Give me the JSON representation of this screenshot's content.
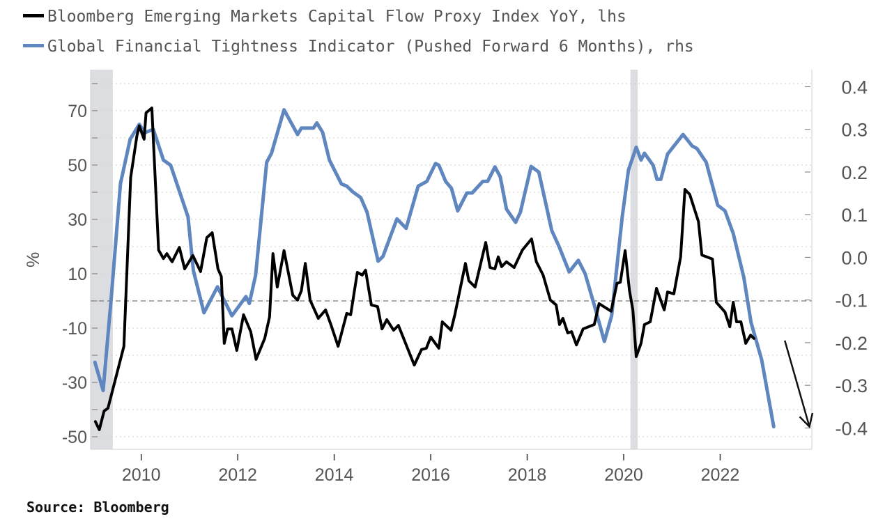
{
  "chart_data": {
    "type": "line",
    "title": "",
    "legend_position": "top-left",
    "source": "Source: Bloomberg",
    "ylabel_left": "%",
    "ylabel_right": "",
    "xlim": [
      2008.95,
      2023.9
    ],
    "ylim_left": [
      -54.6,
      85.1
    ],
    "ylim_right": [
      -0.45,
      0.44
    ],
    "x_ticks": [
      "2010",
      "2012",
      "2014",
      "2016",
      "2018",
      "2020",
      "2022"
    ],
    "x_tick_values": [
      2010,
      2012,
      2014,
      2016,
      2018,
      2020,
      2022
    ],
    "y_left_ticks": [
      "70",
      "50",
      "30",
      "10",
      "-10",
      "-30",
      "-50"
    ],
    "y_left_tick_values": [
      70,
      50,
      30,
      10,
      -10,
      -30,
      -50
    ],
    "y_right_ticks": [
      "0.4",
      "0.3",
      "0.2",
      "0.1",
      "0.0",
      "-0.1",
      "-0.2",
      "-0.3",
      "-0.4"
    ],
    "y_right_tick_values": [
      0.4,
      0.3,
      0.2,
      0.1,
      0.0,
      -0.1,
      -0.2,
      -0.3,
      -0.4
    ],
    "grid": true,
    "reference_line_left": 0,
    "shaded_periods": [
      [
        2008.95,
        2009.41
      ],
      [
        2020.14,
        2020.29
      ]
    ],
    "annotation_arrow": {
      "from": [
        2023.34,
        -0.195
      ],
      "to": [
        2023.85,
        -0.397
      ]
    },
    "series": [
      {
        "name": "Bloomberg Emerging Markets Capital Flow Proxy Index YoY, lhs",
        "axis": "left",
        "color": "#000000",
        "x": [
          2009.05,
          2009.13,
          2009.23,
          2009.31,
          2009.64,
          2009.78,
          2009.91,
          2009.96,
          2010.06,
          2010.1,
          2010.22,
          2010.36,
          2010.46,
          2010.53,
          2010.64,
          2010.79,
          2010.9,
          2011.07,
          2011.23,
          2011.36,
          2011.47,
          2011.59,
          2011.66,
          2011.72,
          2011.79,
          2011.88,
          2011.98,
          2012.12,
          2012.27,
          2012.38,
          2012.56,
          2012.66,
          2012.73,
          2012.82,
          2012.96,
          2013.14,
          2013.24,
          2013.32,
          2013.4,
          2013.5,
          2013.67,
          2013.82,
          2013.93,
          2014.08,
          2014.26,
          2014.34,
          2014.48,
          2014.58,
          2014.65,
          2014.77,
          2014.9,
          2014.99,
          2015.09,
          2015.23,
          2015.33,
          2015.66,
          2015.81,
          2015.91,
          2016.0,
          2016.17,
          2016.24,
          2016.42,
          2016.5,
          2016.72,
          2016.79,
          2016.92,
          2017.14,
          2017.23,
          2017.33,
          2017.4,
          2017.47,
          2017.57,
          2017.73,
          2017.9,
          2018.09,
          2018.19,
          2018.33,
          2018.48,
          2018.6,
          2018.67,
          2018.74,
          2018.84,
          2018.92,
          2019.02,
          2019.16,
          2019.39,
          2019.49,
          2019.74,
          2019.86,
          2019.93,
          2020.03,
          2020.12,
          2020.19,
          2020.26,
          2020.36,
          2020.43,
          2020.55,
          2020.68,
          2020.84,
          2020.91,
          2021.04,
          2021.18,
          2021.27,
          2021.37,
          2021.55,
          2021.62,
          2021.84,
          2021.92,
          2022.1,
          2022.2,
          2022.27,
          2022.34,
          2022.43,
          2022.53,
          2022.63,
          2022.7
        ],
        "values": [
          -44.4,
          -47.4,
          -40.5,
          -39.5,
          -16.7,
          45.4,
          60.8,
          64.4,
          59.5,
          69.2,
          71.0,
          18.7,
          15.6,
          17.4,
          14.4,
          19.7,
          11.8,
          16.7,
          10.8,
          23.3,
          25.1,
          11.8,
          9.0,
          -15.6,
          -10.3,
          -10.3,
          -18.2,
          -5.1,
          -11.3,
          -21.5,
          -13.8,
          -5.9,
          17.4,
          5.1,
          18.5,
          2.1,
          0.3,
          3.8,
          13.8,
          0.3,
          -6.4,
          -3.3,
          -8.7,
          -16.7,
          -4.6,
          -5.1,
          10.5,
          9.5,
          11.3,
          -1.5,
          -2.1,
          -10.3,
          -6.9,
          -10.8,
          -9.0,
          -23.6,
          -17.9,
          -17.4,
          -13.3,
          -17.4,
          -7.7,
          -10.8,
          -5.1,
          13.8,
          7.4,
          5.1,
          21.5,
          12.3,
          11.8,
          16.2,
          12.6,
          14.4,
          12.3,
          18.7,
          22.8,
          14.4,
          9.5,
          0.3,
          -1.5,
          -8.7,
          -6.4,
          -11.8,
          -11.3,
          -16.2,
          -10.3,
          -8.7,
          -1.0,
          -3.8,
          6.4,
          6.9,
          18.5,
          3.8,
          -3.3,
          -20.5,
          -15.6,
          -8.7,
          -7.7,
          4.6,
          -3.3,
          3.3,
          2.6,
          16.2,
          41.0,
          39.2,
          29.2,
          16.9,
          15.4,
          -0.5,
          -4.1,
          -9.5,
          -0.5,
          -7.7,
          -7.7,
          -15.6,
          -12.6,
          -13.8
        ]
      },
      {
        "name": "Global Financial Tightness Indicator (Pushed Forward 6 Months), rhs",
        "axis": "right",
        "color": "#5f86bf",
        "x": [
          2009.04,
          2009.21,
          2009.38,
          2009.57,
          2009.77,
          2009.96,
          2010.07,
          2010.25,
          2010.46,
          2010.61,
          2010.97,
          2011.08,
          2011.3,
          2011.58,
          2011.88,
          2012.17,
          2012.24,
          2012.37,
          2012.6,
          2012.7,
          2012.96,
          2013.24,
          2013.32,
          2013.57,
          2013.64,
          2013.76,
          2013.9,
          2014.15,
          2014.26,
          2014.39,
          2014.55,
          2014.68,
          2014.91,
          2015.01,
          2015.3,
          2015.49,
          2015.74,
          2015.92,
          2016.1,
          2016.17,
          2016.31,
          2016.43,
          2016.56,
          2016.75,
          2016.86,
          2017.08,
          2017.18,
          2017.33,
          2017.44,
          2017.57,
          2017.76,
          2017.86,
          2018.08,
          2018.24,
          2018.51,
          2018.67,
          2018.87,
          2019.06,
          2019.2,
          2019.38,
          2019.6,
          2019.75,
          2019.97,
          2020.1,
          2020.26,
          2020.36,
          2020.43,
          2020.61,
          2020.69,
          2020.77,
          2020.91,
          2021.23,
          2021.42,
          2021.52,
          2021.71,
          2021.95,
          2022.1,
          2022.27,
          2022.49,
          2022.64,
          2022.86,
          2023.11
        ],
        "values": [
          -0.246,
          -0.312,
          -0.092,
          0.173,
          0.277,
          0.312,
          0.292,
          0.3,
          0.228,
          0.216,
          0.095,
          -0.031,
          -0.13,
          -0.069,
          -0.137,
          -0.092,
          -0.108,
          -0.042,
          0.223,
          0.244,
          0.346,
          0.288,
          0.303,
          0.303,
          0.315,
          0.293,
          0.228,
          0.172,
          0.167,
          0.153,
          0.14,
          0.106,
          -0.009,
          0.002,
          0.09,
          0.068,
          0.167,
          0.178,
          0.22,
          0.216,
          0.178,
          0.162,
          0.109,
          0.151,
          0.151,
          0.178,
          0.178,
          0.212,
          0.189,
          0.113,
          0.082,
          0.106,
          0.213,
          0.2,
          0.063,
          0.023,
          -0.034,
          -0.007,
          -0.038,
          -0.108,
          -0.197,
          -0.137,
          0.095,
          0.205,
          0.258,
          0.228,
          0.244,
          0.216,
          0.183,
          0.183,
          0.242,
          0.288,
          0.261,
          0.255,
          0.223,
          0.122,
          0.109,
          0.056,
          -0.047,
          -0.153,
          -0.24,
          -0.397
        ]
      }
    ]
  }
}
